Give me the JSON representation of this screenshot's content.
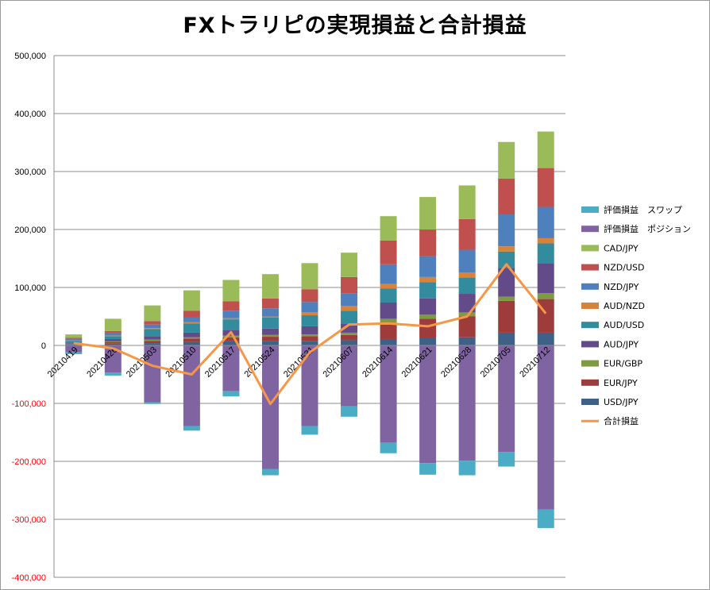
{
  "chart_data": {
    "type": "bar",
    "subtype": "stacked-bar-with-line",
    "title": "FXトラリピの実現損益と合計損益",
    "xlabel": "",
    "ylabel": "",
    "ylim": [
      -400000,
      500000
    ],
    "y_ticks": [
      "500,000",
      "400,000",
      "300,000",
      "200,000",
      "100,000",
      "0",
      "-100,000",
      "-200,000",
      "-300,000",
      "-400,000"
    ],
    "negative_tick_color": "#ff0000",
    "grid": "horizontal",
    "legend_position": "right",
    "categories": [
      "20210419",
      "20210426",
      "20210503",
      "20210510",
      "20210517",
      "20210524",
      "20210531",
      "20210607",
      "20210614",
      "20210621",
      "20210628",
      "20210705",
      "20210712"
    ],
    "series": [
      {
        "name": "USD/JPY",
        "kind": "realized",
        "color": "#3e6189",
        "values": [
          1500,
          3000,
          4000,
          6000,
          7000,
          8000,
          8000,
          9000,
          11000,
          13000,
          14000,
          22000,
          22000
        ]
      },
      {
        "name": "EUR/JPY",
        "kind": "realized",
        "color": "#9d3c3a",
        "values": [
          1000,
          3000,
          4000,
          6000,
          7000,
          7000,
          8000,
          9000,
          25000,
          33000,
          36000,
          55000,
          58000
        ]
      },
      {
        "name": "EUR/GBP",
        "kind": "realized",
        "color": "#7e9a42",
        "values": [
          500,
          1000,
          2000,
          2000,
          3000,
          3000,
          3000,
          4000,
          10000,
          7000,
          7000,
          7000,
          10000
        ]
      },
      {
        "name": "AUD/JPY",
        "kind": "realized",
        "color": "#634b8a",
        "values": [
          2000,
          4000,
          6000,
          8000,
          10000,
          11000,
          14000,
          16000,
          28000,
          28000,
          32000,
          50000,
          52000
        ]
      },
      {
        "name": "AUD/USD",
        "kind": "realized",
        "color": "#338b9e",
        "values": [
          3000,
          5000,
          12000,
          16000,
          18000,
          19000,
          19000,
          22000,
          24000,
          28000,
          28000,
          28000,
          34000
        ]
      },
      {
        "name": "AUD/NZD",
        "kind": "realized",
        "color": "#d8823a",
        "values": [
          500,
          1000,
          2000,
          2000,
          2000,
          2000,
          5000,
          8000,
          8000,
          9000,
          9000,
          9000,
          9000
        ]
      },
      {
        "name": "NZD/JPY",
        "kind": "realized",
        "color": "#4d80bd",
        "values": [
          3000,
          5000,
          6000,
          8000,
          13000,
          14000,
          18000,
          22000,
          34000,
          36000,
          39000,
          55000,
          54000
        ]
      },
      {
        "name": "NZD/USD",
        "kind": "realized",
        "color": "#c0504d",
        "values": [
          1500,
          3000,
          6000,
          12000,
          16000,
          17000,
          22000,
          28000,
          41000,
          46000,
          53000,
          62000,
          67000
        ]
      },
      {
        "name": "CAD/JPY",
        "kind": "realized",
        "color": "#9bbb59",
        "values": [
          6000,
          21000,
          27000,
          35000,
          37000,
          42000,
          45000,
          42000,
          42000,
          56000,
          58000,
          63000,
          63000
        ]
      },
      {
        "name": "評価損益　ポジション",
        "kind": "unrealized",
        "color": "#8064a2",
        "values": [
          -12000,
          -47000,
          -98000,
          -139000,
          -79000,
          -213000,
          -139000,
          -105000,
          -168000,
          -203000,
          -199000,
          -184000,
          -283000
        ]
      },
      {
        "name": "評価損益　スワップ",
        "kind": "unrealized",
        "color": "#4bacc6",
        "values": [
          -3000,
          -5000,
          -3000,
          -8000,
          -9000,
          -11000,
          -15000,
          -18000,
          -18000,
          -20000,
          -25000,
          -25000,
          -32000
        ]
      },
      {
        "name": "合計損益",
        "kind": "line",
        "color": "#f79646",
        "values": [
          4000,
          -5000,
          -35000,
          -50000,
          23000,
          -101000,
          -12000,
          36000,
          38000,
          33000,
          50000,
          140000,
          55000
        ]
      }
    ],
    "legend_order": [
      "評価損益　スワップ",
      "評価損益　ポジション",
      "CAD/JPY",
      "NZD/USD",
      "NZD/JPY",
      "AUD/NZD",
      "AUD/USD",
      "AUD/JPY",
      "EUR/GBP",
      "EUR/JPY",
      "USD/JPY",
      "合計損益"
    ]
  }
}
